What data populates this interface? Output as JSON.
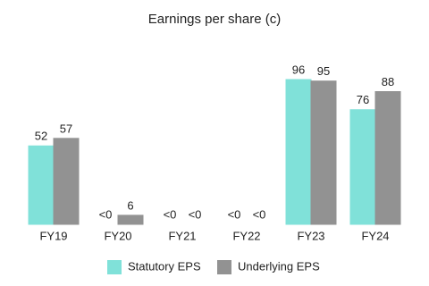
{
  "chart_data": {
    "type": "bar",
    "title": "Earnings per share (c)",
    "categories": [
      "FY19",
      "FY20",
      "FY21",
      "FY22",
      "FY23",
      "FY24"
    ],
    "series": [
      {
        "name": "Statutory EPS",
        "color": "#80e1d9",
        "values": [
          52,
          0,
          0,
          0,
          96,
          76
        ],
        "value_labels": [
          "52",
          "<0",
          "<0",
          "<0",
          "96",
          "76"
        ]
      },
      {
        "name": "Underlying EPS",
        "color": "#929292",
        "values": [
          57,
          6,
          0,
          0,
          95,
          88
        ],
        "value_labels": [
          "57",
          "6",
          "<0",
          "<0",
          "95",
          "88"
        ]
      }
    ]
  }
}
